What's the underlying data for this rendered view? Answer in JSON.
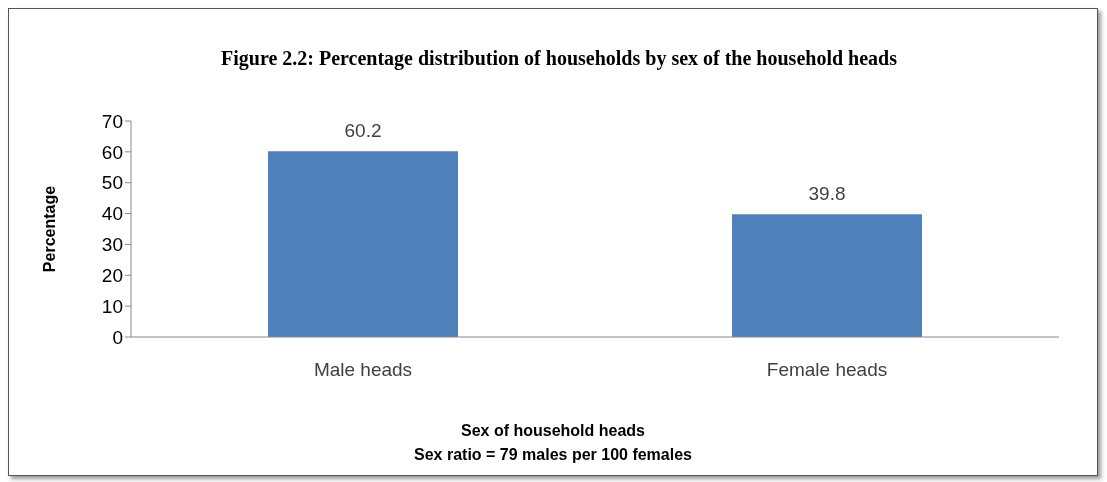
{
  "chart_data": {
    "type": "bar",
    "title": "Figure 2.2: Percentage distribution of households by sex of the household heads",
    "xlabel": "Sex of household heads",
    "ylabel": "Percentage",
    "annotations": [
      "Sex ratio = 79 males per 100 females"
    ],
    "categories": [
      "Male heads",
      "Female heads"
    ],
    "values": [
      60.2,
      39.8
    ],
    "color": "#4f81bd",
    "ylim": [
      0,
      70
    ],
    "yticks": [
      0,
      10,
      20,
      30,
      40,
      50,
      60,
      70
    ],
    "grid": false,
    "legend": false,
    "data_labels": true
  }
}
